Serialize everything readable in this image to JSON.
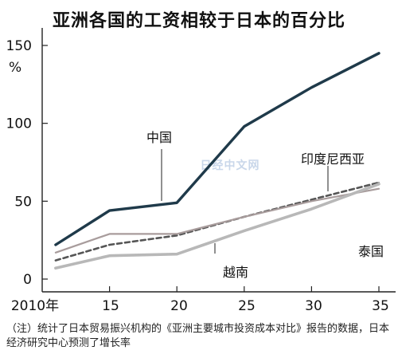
{
  "chart_data": {
    "type": "line",
    "title": "亚洲各国的工资相较于日本的百分比",
    "ylabel": "%",
    "ylim": [
      0,
      150
    ],
    "yticks": [
      "0",
      "50",
      "100",
      "150"
    ],
    "xticks": [
      "2010年",
      "15",
      "20",
      "25",
      "30",
      "35"
    ],
    "x": [
      2011,
      2015,
      2020,
      2025,
      2030,
      2035
    ],
    "series": [
      {
        "name": "中国",
        "color": "#1f3a4a",
        "dash": "solid",
        "values": [
          22,
          44,
          49,
          98,
          123,
          145
        ]
      },
      {
        "name": "印度尼西亚",
        "color": "#555555",
        "dash": "dashed",
        "values": [
          12,
          22,
          28,
          40,
          51,
          62
        ]
      },
      {
        "name": "泰国",
        "color": "#a89c9c",
        "dash": "solid",
        "values": [
          17,
          29,
          29,
          40,
          50,
          58
        ]
      },
      {
        "name": "越南",
        "color": "#b8b8b8",
        "dash": "solid",
        "values": [
          7,
          15,
          16,
          31,
          45,
          61
        ]
      }
    ],
    "watermark": "日经中文网",
    "note": "（注）统计了日本贸易振兴机构的《亚洲主要城市投资成本对比》报告的数据，日本经济研究中心预测了增长率"
  }
}
